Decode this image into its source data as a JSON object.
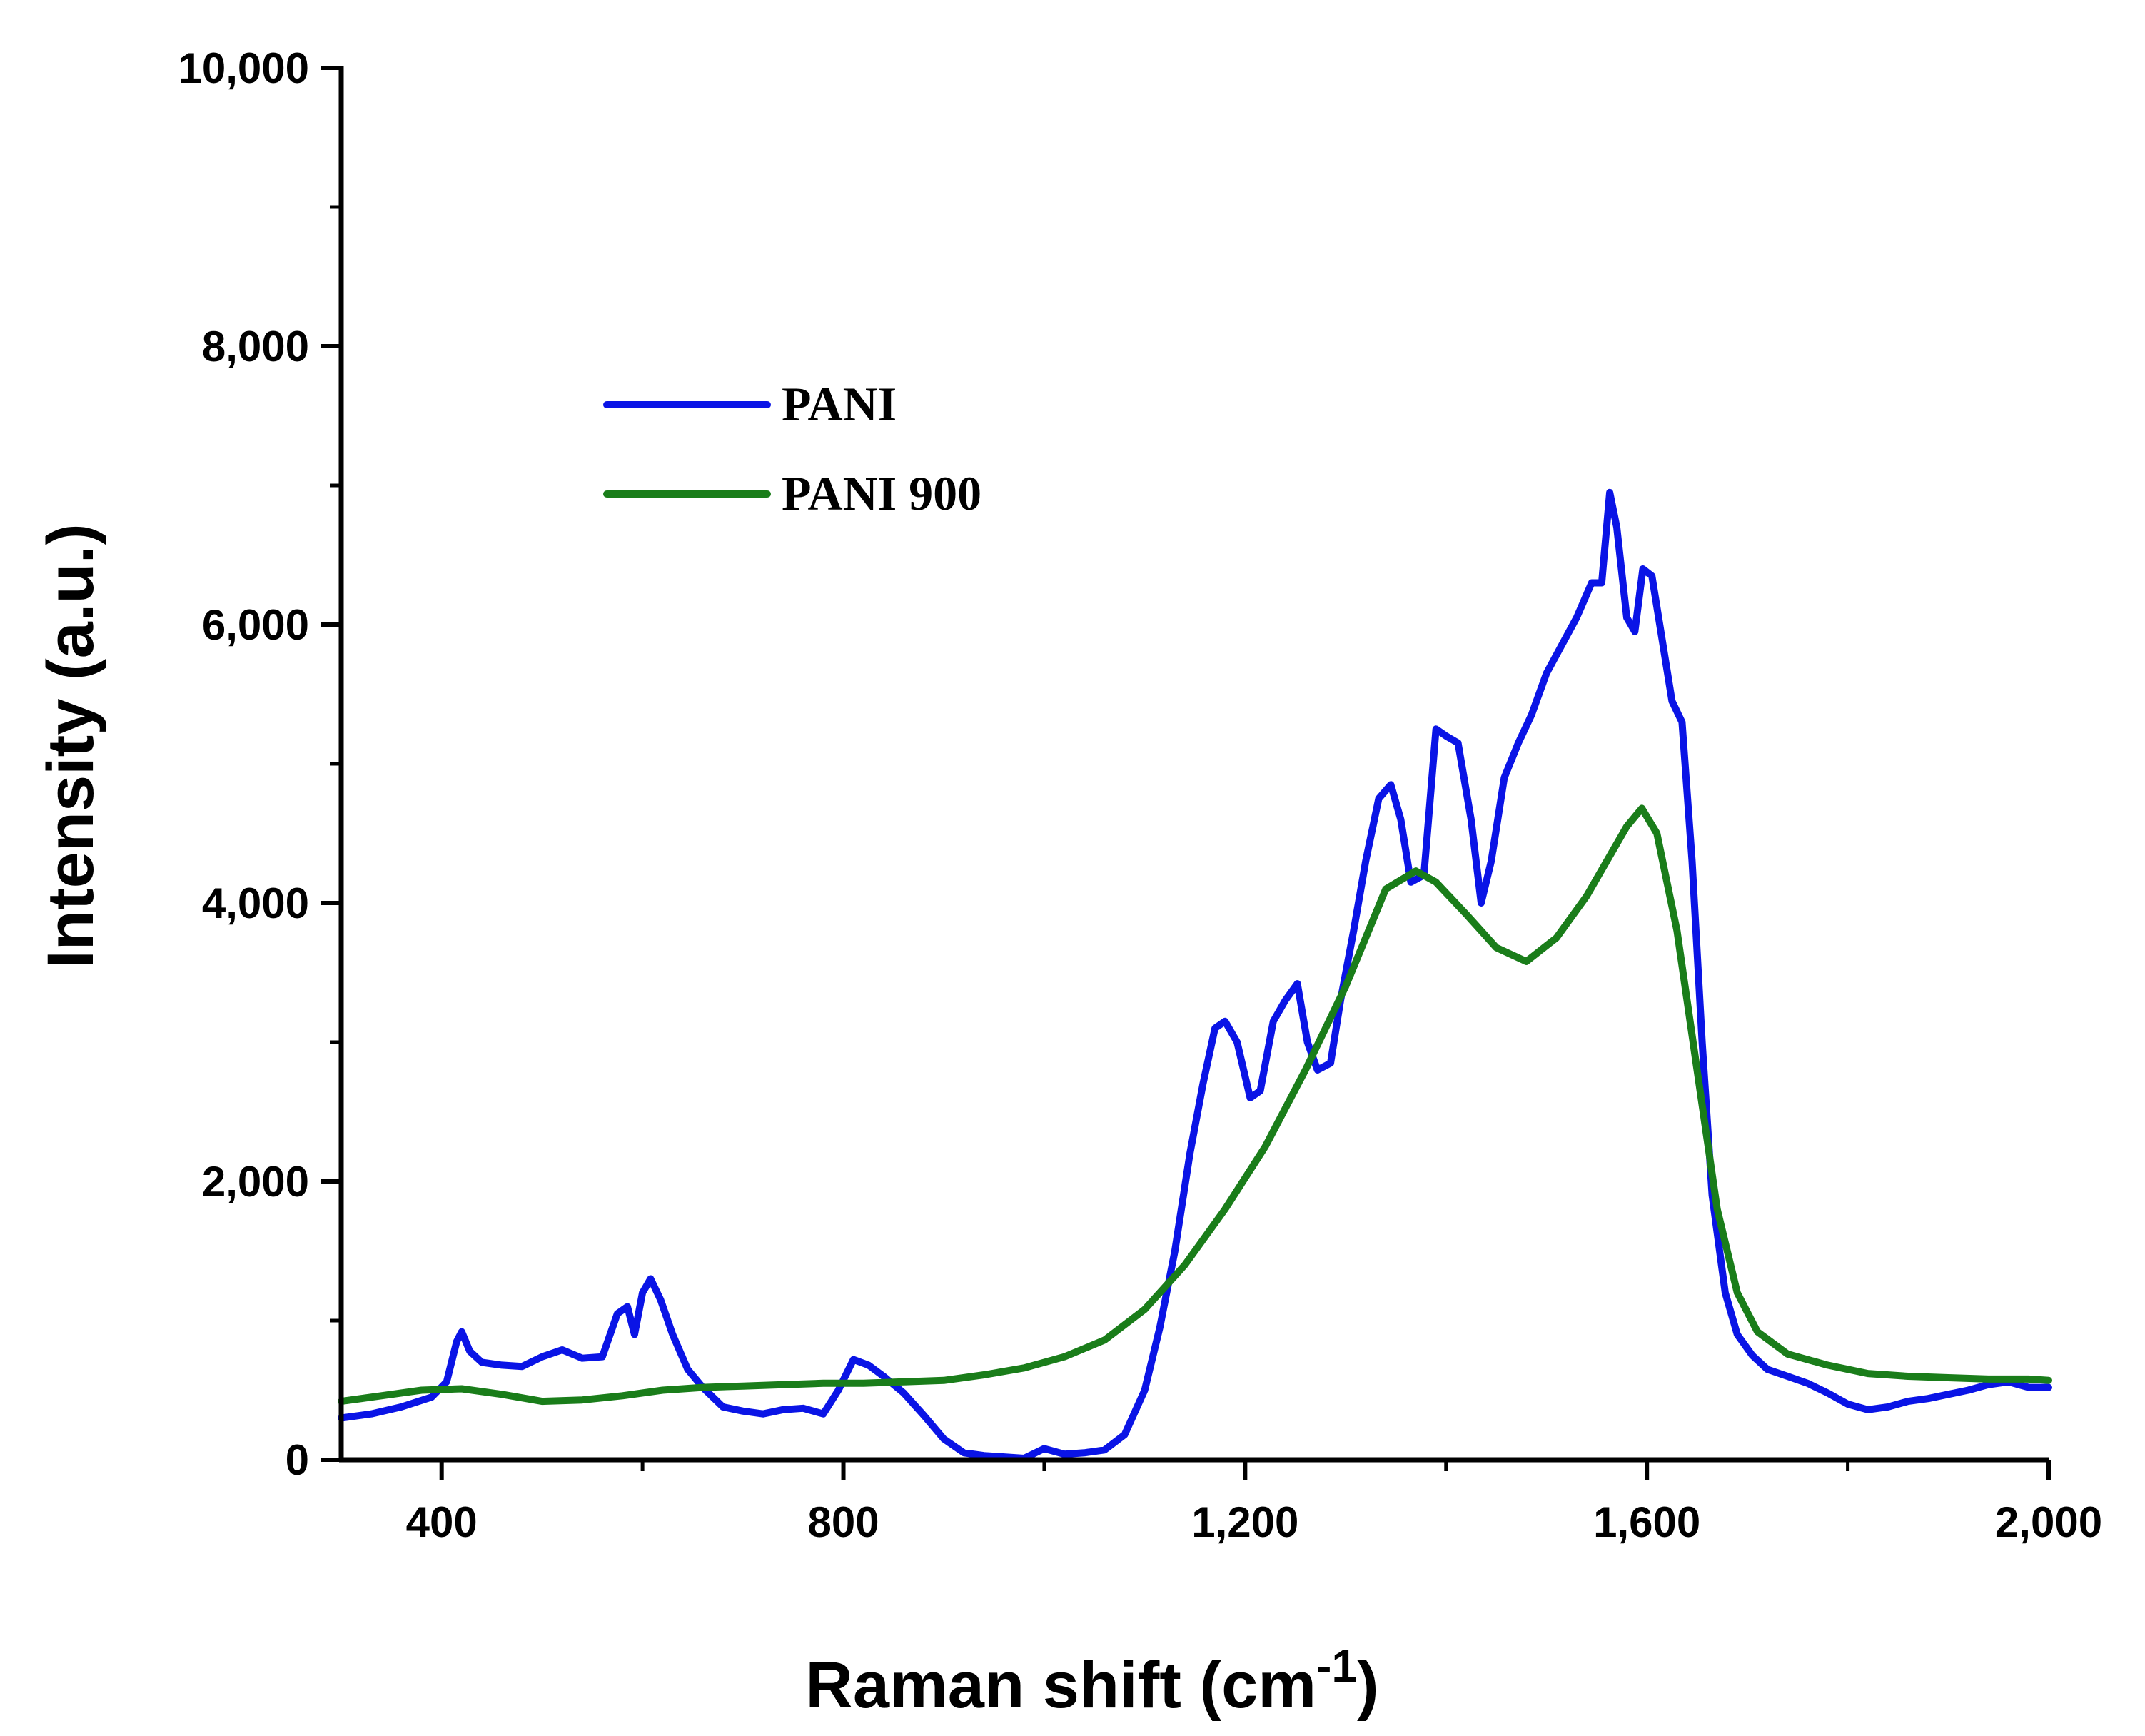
{
  "chart_data": {
    "type": "line",
    "title": "",
    "xlabel": "Raman shift (cm",
    "xlabel_superscript": "-1",
    "xlabel_suffix": ")",
    "ylabel": "Intensity (a.u.)",
    "xlim": [
      300,
      2000
    ],
    "ylim": [
      0,
      10000
    ],
    "x_ticks": [
      {
        "value": 400,
        "label": "400"
      },
      {
        "value": 800,
        "label": "800"
      },
      {
        "value": 1200,
        "label": "1,200"
      },
      {
        "value": 1600,
        "label": "1,600"
      },
      {
        "value": 2000,
        "label": "2,000"
      }
    ],
    "x_minor_ticks": [
      600,
      1000,
      1400,
      1800
    ],
    "y_ticks": [
      {
        "value": 0,
        "label": "0"
      },
      {
        "value": 2000,
        "label": "2,000"
      },
      {
        "value": 4000,
        "label": "4,000"
      },
      {
        "value": 6000,
        "label": "6,000"
      },
      {
        "value": 8000,
        "label": "8,000"
      },
      {
        "value": 10000,
        "label": "10,000"
      }
    ],
    "y_minor_ticks": [
      1000,
      3000,
      5000,
      7000,
      9000
    ],
    "legend_position": "upper-left",
    "series": [
      {
        "name": "PANI",
        "color": "#0a14e6",
        "points": [
          [
            300,
            300
          ],
          [
            330,
            330
          ],
          [
            360,
            380
          ],
          [
            390,
            450
          ],
          [
            405,
            560
          ],
          [
            415,
            850
          ],
          [
            420,
            920
          ],
          [
            428,
            780
          ],
          [
            440,
            700
          ],
          [
            460,
            680
          ],
          [
            480,
            670
          ],
          [
            500,
            740
          ],
          [
            520,
            790
          ],
          [
            540,
            730
          ],
          [
            560,
            740
          ],
          [
            575,
            1050
          ],
          [
            585,
            1100
          ],
          [
            592,
            900
          ],
          [
            600,
            1200
          ],
          [
            608,
            1300
          ],
          [
            618,
            1150
          ],
          [
            630,
            900
          ],
          [
            645,
            650
          ],
          [
            660,
            520
          ],
          [
            680,
            380
          ],
          [
            700,
            350
          ],
          [
            720,
            330
          ],
          [
            740,
            360
          ],
          [
            760,
            370
          ],
          [
            780,
            330
          ],
          [
            795,
            500
          ],
          [
            810,
            720
          ],
          [
            825,
            680
          ],
          [
            840,
            600
          ],
          [
            860,
            480
          ],
          [
            880,
            320
          ],
          [
            900,
            150
          ],
          [
            920,
            50
          ],
          [
            940,
            30
          ],
          [
            960,
            20
          ],
          [
            980,
            10
          ],
          [
            1000,
            80
          ],
          [
            1020,
            40
          ],
          [
            1040,
            50
          ],
          [
            1060,
            70
          ],
          [
            1080,
            180
          ],
          [
            1100,
            500
          ],
          [
            1115,
            950
          ],
          [
            1130,
            1500
          ],
          [
            1145,
            2200
          ],
          [
            1158,
            2700
          ],
          [
            1170,
            3100
          ],
          [
            1180,
            3150
          ],
          [
            1192,
            3000
          ],
          [
            1205,
            2600
          ],
          [
            1215,
            2650
          ],
          [
            1228,
            3150
          ],
          [
            1240,
            3300
          ],
          [
            1252,
            3420
          ],
          [
            1262,
            3000
          ],
          [
            1272,
            2800
          ],
          [
            1285,
            2850
          ],
          [
            1295,
            3300
          ],
          [
            1308,
            3800
          ],
          [
            1320,
            4300
          ],
          [
            1333,
            4750
          ],
          [
            1345,
            4850
          ],
          [
            1355,
            4600
          ],
          [
            1365,
            4150
          ],
          [
            1378,
            4200
          ],
          [
            1390,
            5250
          ],
          [
            1400,
            5200
          ],
          [
            1412,
            5150
          ],
          [
            1425,
            4600
          ],
          [
            1435,
            4000
          ],
          [
            1445,
            4300
          ],
          [
            1458,
            4900
          ],
          [
            1472,
            5150
          ],
          [
            1485,
            5350
          ],
          [
            1500,
            5650
          ],
          [
            1515,
            5850
          ],
          [
            1530,
            6050
          ],
          [
            1545,
            6300
          ],
          [
            1555,
            6300
          ],
          [
            1563,
            6950
          ],
          [
            1570,
            6700
          ],
          [
            1580,
            6050
          ],
          [
            1588,
            5950
          ],
          [
            1596,
            6400
          ],
          [
            1605,
            6350
          ],
          [
            1615,
            5900
          ],
          [
            1625,
            5450
          ],
          [
            1635,
            5300
          ],
          [
            1645,
            4300
          ],
          [
            1655,
            3000
          ],
          [
            1665,
            1900
          ],
          [
            1678,
            1200
          ],
          [
            1690,
            900
          ],
          [
            1705,
            750
          ],
          [
            1720,
            650
          ],
          [
            1740,
            600
          ],
          [
            1760,
            550
          ],
          [
            1780,
            480
          ],
          [
            1800,
            400
          ],
          [
            1820,
            360
          ],
          [
            1840,
            380
          ],
          [
            1860,
            420
          ],
          [
            1880,
            440
          ],
          [
            1900,
            470
          ],
          [
            1920,
            500
          ],
          [
            1940,
            540
          ],
          [
            1960,
            560
          ],
          [
            1980,
            520
          ],
          [
            2000,
            520
          ]
        ]
      },
      {
        "name": "PANI 900",
        "color": "#1a7d1a",
        "points": [
          [
            300,
            420
          ],
          [
            340,
            460
          ],
          [
            380,
            500
          ],
          [
            420,
            510
          ],
          [
            460,
            470
          ],
          [
            500,
            420
          ],
          [
            540,
            430
          ],
          [
            580,
            460
          ],
          [
            620,
            500
          ],
          [
            660,
            520
          ],
          [
            700,
            530
          ],
          [
            740,
            540
          ],
          [
            780,
            550
          ],
          [
            820,
            550
          ],
          [
            860,
            560
          ],
          [
            900,
            570
          ],
          [
            940,
            610
          ],
          [
            980,
            660
          ],
          [
            1020,
            740
          ],
          [
            1060,
            860
          ],
          [
            1100,
            1080
          ],
          [
            1140,
            1400
          ],
          [
            1180,
            1800
          ],
          [
            1220,
            2250
          ],
          [
            1260,
            2800
          ],
          [
            1300,
            3400
          ],
          [
            1340,
            4100
          ],
          [
            1370,
            4230
          ],
          [
            1390,
            4150
          ],
          [
            1420,
            3920
          ],
          [
            1450,
            3680
          ],
          [
            1480,
            3580
          ],
          [
            1510,
            3750
          ],
          [
            1540,
            4050
          ],
          [
            1560,
            4300
          ],
          [
            1580,
            4550
          ],
          [
            1595,
            4680
          ],
          [
            1610,
            4500
          ],
          [
            1630,
            3800
          ],
          [
            1650,
            2800
          ],
          [
            1670,
            1800
          ],
          [
            1690,
            1200
          ],
          [
            1710,
            920
          ],
          [
            1740,
            760
          ],
          [
            1780,
            680
          ],
          [
            1820,
            620
          ],
          [
            1860,
            600
          ],
          [
            1900,
            590
          ],
          [
            1940,
            580
          ],
          [
            1980,
            580
          ],
          [
            2000,
            570
          ]
        ]
      }
    ]
  }
}
